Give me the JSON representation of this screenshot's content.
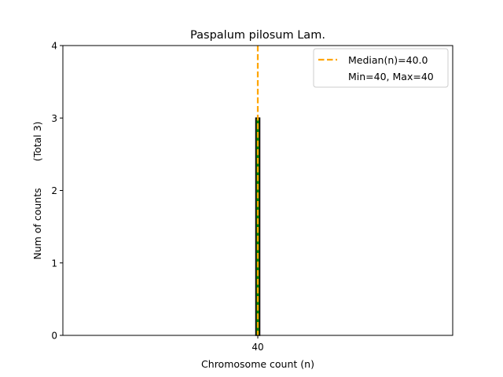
{
  "chart_data": {
    "type": "bar",
    "title": "Paspalum pilosum Lam.",
    "xlabel": "Chromosome count (n)",
    "ylabel": "Num of counts",
    "ylabel_total": "(Total 3)",
    "categories": [
      "40"
    ],
    "x": [
      40
    ],
    "values": [
      3
    ],
    "xlim": [
      0,
      80
    ],
    "ylim": [
      0,
      4
    ],
    "yticks": [
      0,
      1,
      2,
      3,
      4
    ],
    "xticks": [
      40
    ],
    "grid": false,
    "bar_color": "#008000",
    "bar_edge_color": "#000000",
    "median": {
      "value": 40.0,
      "label": "Median(n)=40.0",
      "color": "#FFA500",
      "style": "dashed"
    },
    "legend": {
      "placement": "upper right",
      "entries": [
        "Median(n)=40.0",
        "Min=40, Max=40"
      ]
    },
    "min": 40,
    "max": 40
  }
}
